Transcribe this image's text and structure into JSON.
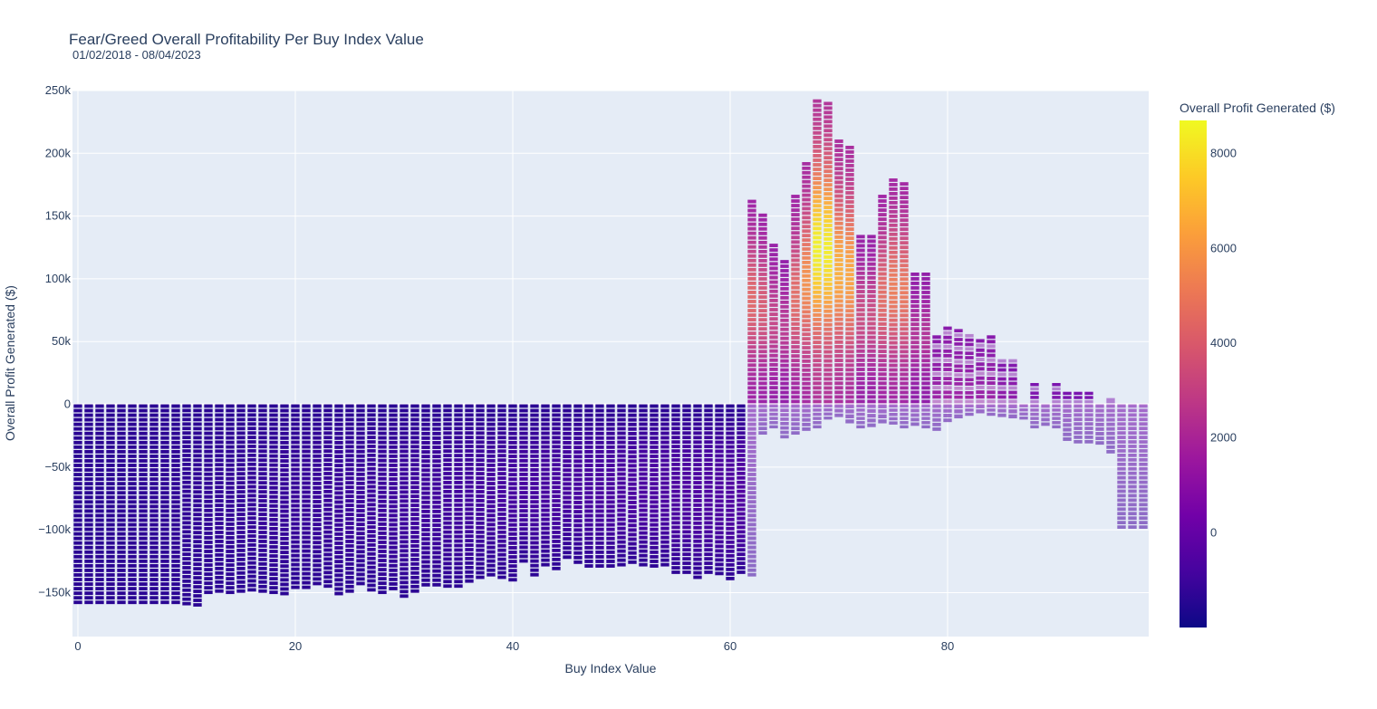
{
  "chart_data": {
    "type": "bar",
    "subtype": "stacked",
    "title": "Fear/Greed Overall Profitability Per Buy Index Value",
    "subtitle": "01/02/2018 - 08/04/2023",
    "xlabel": "Buy Index Value",
    "ylabel": "Overall Profit Generated ($)",
    "colorbar_title": "Overall Profit Generated ($)",
    "colorscale": "plasma",
    "color_range": [
      -2000,
      8700
    ],
    "xlim": [
      -0.5,
      98.5
    ],
    "ylim": [
      -185000,
      250000
    ],
    "x_ticks": [
      0,
      20,
      40,
      60,
      80
    ],
    "x_tick_labels": [
      "0",
      "20",
      "40",
      "60",
      "80"
    ],
    "y_ticks": [
      -150000,
      -100000,
      -50000,
      0,
      50000,
      100000,
      150000,
      200000,
      250000
    ],
    "y_tick_labels": [
      "−150k",
      "−100k",
      "−50k",
      "0",
      "50k",
      "100k",
      "150k",
      "200k",
      "250k"
    ],
    "colorbar_ticks": [
      0,
      2000,
      4000,
      6000,
      8000
    ],
    "colorbar_tick_labels": [
      "0",
      "2000",
      "4000",
      "6000",
      "8000"
    ],
    "grid": true,
    "legend": "colorbar-right",
    "x": [
      0,
      1,
      2,
      3,
      4,
      5,
      6,
      7,
      8,
      9,
      10,
      11,
      12,
      13,
      14,
      15,
      16,
      17,
      18,
      19,
      20,
      21,
      22,
      23,
      24,
      25,
      26,
      27,
      28,
      29,
      30,
      31,
      32,
      33,
      34,
      35,
      36,
      37,
      38,
      39,
      40,
      41,
      42,
      43,
      44,
      45,
      46,
      47,
      48,
      49,
      50,
      51,
      52,
      53,
      54,
      55,
      56,
      57,
      58,
      59,
      60,
      61,
      62,
      63,
      64,
      65,
      66,
      67,
      68,
      69,
      70,
      71,
      72,
      73,
      74,
      75,
      76,
      77,
      78,
      79,
      80,
      81,
      82,
      83,
      84,
      85,
      86,
      87,
      88,
      89,
      90,
      91,
      92,
      93,
      94,
      95,
      96,
      97,
      98
    ],
    "positive_totals": [
      0,
      0,
      0,
      0,
      0,
      0,
      0,
      0,
      0,
      0,
      0,
      0,
      0,
      0,
      0,
      0,
      0,
      0,
      0,
      0,
      0,
      0,
      0,
      0,
      0,
      0,
      0,
      0,
      0,
      0,
      0,
      0,
      0,
      0,
      0,
      0,
      0,
      0,
      0,
      0,
      0,
      0,
      0,
      0,
      0,
      0,
      0,
      0,
      0,
      0,
      0,
      0,
      0,
      0,
      0,
      0,
      0,
      0,
      0,
      0,
      0,
      0,
      163000,
      152000,
      128000,
      115000,
      167000,
      193000,
      243000,
      241000,
      211000,
      206000,
      135000,
      135000,
      167000,
      180000,
      177000,
      105000,
      105000,
      55000,
      62000,
      60000,
      56000,
      52000,
      55000,
      36000,
      36000,
      0,
      17000,
      0,
      17000,
      10000,
      10000,
      10000,
      0,
      5000,
      0,
      0,
      0
    ],
    "negative_totals": [
      -160000,
      -160000,
      -160000,
      -160000,
      -160000,
      -160000,
      -160000,
      -160000,
      -160000,
      -160000,
      -161000,
      -162000,
      -152000,
      -151000,
      -152000,
      -151000,
      -150000,
      -151000,
      -152000,
      -153000,
      -148000,
      -148000,
      -145000,
      -147000,
      -153000,
      -151000,
      -145000,
      -150000,
      -152000,
      -149000,
      -155000,
      -151000,
      -146000,
      -146000,
      -147000,
      -147000,
      -143000,
      -140000,
      -138000,
      -140000,
      -142000,
      -127000,
      -138000,
      -130000,
      -133000,
      -124000,
      -128000,
      -131000,
      -131000,
      -131000,
      -130000,
      -128000,
      -130000,
      -131000,
      -130000,
      -136000,
      -136000,
      -140000,
      -136000,
      -137000,
      -141000,
      -136000,
      -138000,
      -25000,
      -20000,
      -28000,
      -25000,
      -22000,
      -20000,
      -13000,
      -11000,
      -16000,
      -20000,
      -19000,
      -16000,
      -17000,
      -20000,
      -18000,
      -20000,
      -22000,
      -15000,
      -12000,
      -10000,
      -8000,
      -10000,
      -11000,
      -12000,
      -13000,
      -20000,
      -18000,
      -20000,
      -30000,
      -32000,
      -32000,
      -33000,
      -40000,
      -100000,
      -100000,
      -100000
    ]
  }
}
